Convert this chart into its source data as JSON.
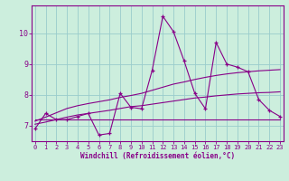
{
  "x": [
    0,
    1,
    2,
    3,
    4,
    5,
    6,
    7,
    8,
    9,
    10,
    11,
    12,
    13,
    14,
    15,
    16,
    17,
    18,
    19,
    20,
    21,
    22,
    23
  ],
  "line_main": [
    6.9,
    7.4,
    7.2,
    7.2,
    7.3,
    7.4,
    6.7,
    6.75,
    8.05,
    7.6,
    7.55,
    8.8,
    10.55,
    10.05,
    9.1,
    8.05,
    7.55,
    9.7,
    9.0,
    8.9,
    8.75,
    7.85,
    7.5,
    7.3
  ],
  "line_trend_top": [
    7.15,
    7.28,
    7.42,
    7.56,
    7.65,
    7.72,
    7.78,
    7.84,
    7.92,
    7.98,
    8.05,
    8.15,
    8.25,
    8.35,
    8.42,
    8.5,
    8.57,
    8.63,
    8.68,
    8.72,
    8.75,
    8.78,
    8.8,
    8.82
  ],
  "line_trend_bottom": [
    7.05,
    7.12,
    7.2,
    7.28,
    7.35,
    7.4,
    7.45,
    7.5,
    7.56,
    7.62,
    7.65,
    7.7,
    7.75,
    7.8,
    7.85,
    7.9,
    7.93,
    7.97,
    8.0,
    8.03,
    8.05,
    8.07,
    8.08,
    8.1
  ],
  "line_flat": [
    7.2,
    7.2,
    7.2,
    7.2,
    7.2,
    7.2,
    7.2,
    7.2,
    7.2,
    7.2,
    7.2,
    7.2,
    7.2,
    7.2,
    7.2,
    7.2,
    7.2,
    7.2,
    7.2,
    7.2,
    7.2,
    7.2,
    7.2,
    7.2
  ],
  "xlabel": "Windchill (Refroidissement éolien,°C)",
  "ylim": [
    6.5,
    10.9
  ],
  "xlim": [
    -0.3,
    23.3
  ],
  "yticks": [
    7,
    8,
    9,
    10
  ],
  "xticks": [
    0,
    1,
    2,
    3,
    4,
    5,
    6,
    7,
    8,
    9,
    10,
    11,
    12,
    13,
    14,
    15,
    16,
    17,
    18,
    19,
    20,
    21,
    22,
    23
  ],
  "line_color": "#880088",
  "bg_color": "#cceedd",
  "grid_color": "#99cccc",
  "tick_label_color": "#880088",
  "xlabel_color": "#880088"
}
